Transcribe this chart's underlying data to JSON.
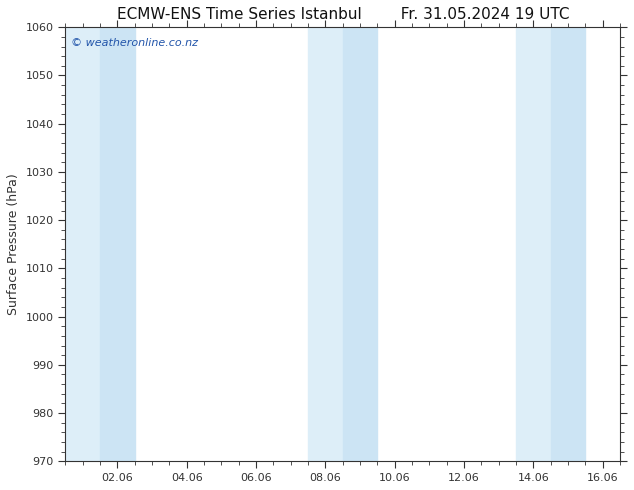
{
  "title_left": "ECMW-ENS Time Series Istanbul",
  "title_right": "Fr. 31.05.2024 19 UTC",
  "ylabel": "Surface Pressure (hPa)",
  "ylim": [
    970,
    1060
  ],
  "yticks": [
    970,
    980,
    990,
    1000,
    1010,
    1020,
    1030,
    1040,
    1050,
    1060
  ],
  "xlim_start": 0.5,
  "xlim_end": 16.5,
  "xtick_labels": [
    "02.06",
    "04.06",
    "06.06",
    "08.06",
    "10.06",
    "12.06",
    "14.06",
    "16.06"
  ],
  "xtick_positions": [
    2,
    4,
    6,
    8,
    10,
    12,
    14,
    16
  ],
  "watermark": "© weatheronline.co.nz",
  "watermark_color": "#2255aa",
  "bg_color": "#ffffff",
  "plot_bg_color": "#ffffff",
  "shaded_bands": [
    {
      "x_start": 0.5,
      "x_end": 1.5,
      "color": "#ddeef8"
    },
    {
      "x_start": 1.5,
      "x_end": 2.5,
      "color": "#cce4f4"
    },
    {
      "x_start": 7.5,
      "x_end": 8.5,
      "color": "#ddeef8"
    },
    {
      "x_start": 8.5,
      "x_end": 9.5,
      "color": "#cce4f4"
    },
    {
      "x_start": 13.5,
      "x_end": 14.5,
      "color": "#ddeef8"
    },
    {
      "x_start": 14.5,
      "x_end": 15.5,
      "color": "#cce4f4"
    }
  ],
  "spine_color": "#333333",
  "tick_color": "#333333",
  "minor_tick_interval_x": 0.5,
  "title_fontsize": 11,
  "label_fontsize": 9,
  "tick_fontsize": 8,
  "watermark_fontsize": 8
}
